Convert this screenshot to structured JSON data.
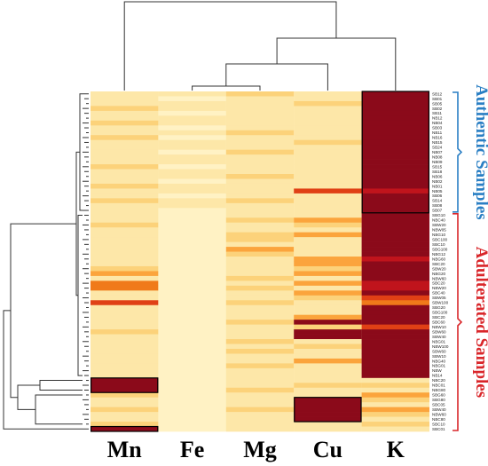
{
  "chart_data": {
    "type": "heatmap",
    "columns": [
      "Mn",
      "Fe",
      "Mg",
      "Cu",
      "K"
    ],
    "column_order_note": "",
    "rows": [
      "SB12",
      "SB01",
      "SB05",
      "SB02",
      "SB11",
      "NB12",
      "NB04",
      "SB03",
      "NB11",
      "NB16",
      "NB15",
      "SB24",
      "NB07",
      "NB08",
      "NB09",
      "SB15",
      "SB18",
      "NB06",
      "NB02",
      "NB01",
      "NB05",
      "SB06",
      "SB14",
      "SB08",
      "SB07",
      "SBG10",
      "NBC40",
      "SBW20",
      "NBW05",
      "NBG10",
      "SBC100",
      "SBC10",
      "SBG100",
      "NBG12",
      "NBG60",
      "SBC20",
      "SBW20",
      "NBG20",
      "NBW60",
      "SBC20",
      "NBW20",
      "SBC40",
      "SBW05",
      "SBW100",
      "SBG20",
      "SBG100",
      "SBC20",
      "SBC60",
      "NBW10",
      "SBW60",
      "SBW40",
      "NBG01",
      "NBW100",
      "SBW60",
      "SBW10",
      "NBG40",
      "NBG01",
      "NBW",
      "NB14",
      "NBC20",
      "NBC01",
      "NBG80",
      "SBG60",
      "SBG80",
      "SBC05",
      "SBW40",
      "NBW60",
      "NBC80",
      "SBC10",
      "SBC01"
    ],
    "groups": [
      {
        "label": "Authentic Samples",
        "color": "#2a7fc4"
      },
      {
        "label": "Adulterated Samples",
        "color": "#d9262a"
      }
    ],
    "group_split_row": 25,
    "color_scale": [
      "#fff2c4",
      "#fde7a8",
      "#fcd27a",
      "#fba43c",
      "#f07a1a",
      "#e04015",
      "#c0141c",
      "#8b0a1a"
    ],
    "value_range": [
      0,
      7
    ],
    "values": [
      [
        1,
        1,
        2,
        1,
        7
      ],
      [
        1,
        0,
        1,
        1,
        7
      ],
      [
        1,
        1,
        1,
        2,
        7
      ],
      [
        2,
        1,
        1,
        1,
        7
      ],
      [
        1,
        0,
        1,
        1,
        7
      ],
      [
        1,
        1,
        1,
        1,
        7
      ],
      [
        2,
        1,
        1,
        1,
        7
      ],
      [
        1,
        0,
        1,
        1,
        7
      ],
      [
        1,
        1,
        2,
        1,
        7
      ],
      [
        2,
        0,
        1,
        1,
        7
      ],
      [
        1,
        1,
        1,
        2,
        7
      ],
      [
        1,
        1,
        1,
        1,
        7
      ],
      [
        1,
        0,
        2,
        1,
        7
      ],
      [
        1,
        1,
        1,
        1,
        7
      ],
      [
        1,
        1,
        1,
        1,
        7
      ],
      [
        2,
        0,
        1,
        1,
        7
      ],
      [
        1,
        1,
        1,
        1,
        7
      ],
      [
        1,
        1,
        2,
        1,
        7
      ],
      [
        1,
        0,
        1,
        1,
        7
      ],
      [
        2,
        1,
        1,
        1,
        7
      ],
      [
        1,
        1,
        1,
        5,
        6
      ],
      [
        1,
        0,
        1,
        1,
        7
      ],
      [
        2,
        1,
        2,
        1,
        7
      ],
      [
        1,
        1,
        1,
        1,
        7
      ],
      [
        1,
        0,
        1,
        1,
        7
      ],
      [
        1,
        0,
        1,
        1,
        7
      ],
      [
        1,
        0,
        2,
        3,
        7
      ],
      [
        2,
        0,
        1,
        2,
        7
      ],
      [
        1,
        0,
        1,
        1,
        7
      ],
      [
        1,
        0,
        2,
        3,
        7
      ],
      [
        1,
        0,
        2,
        1,
        7
      ],
      [
        1,
        0,
        1,
        1,
        7
      ],
      [
        1,
        0,
        3,
        1,
        7
      ],
      [
        1,
        0,
        2,
        1,
        7
      ],
      [
        1,
        0,
        1,
        3,
        6
      ],
      [
        1,
        0,
        1,
        3,
        7
      ],
      [
        2,
        0,
        1,
        2,
        7
      ],
      [
        3,
        0,
        1,
        3,
        7
      ],
      [
        1,
        0,
        2,
        1,
        7
      ],
      [
        4,
        0,
        1,
        3,
        6
      ],
      [
        4,
        0,
        2,
        1,
        6
      ],
      [
        1,
        0,
        1,
        3,
        7
      ],
      [
        1,
        0,
        1,
        2,
        5
      ],
      [
        5,
        0,
        2,
        1,
        4
      ],
      [
        1,
        0,
        1,
        1,
        7
      ],
      [
        1,
        0,
        1,
        1,
        7
      ],
      [
        1,
        0,
        1,
        3,
        7
      ],
      [
        1,
        0,
        2,
        7,
        7
      ],
      [
        1,
        0,
        1,
        2,
        5
      ],
      [
        2,
        0,
        1,
        7,
        7
      ],
      [
        1,
        0,
        1,
        7,
        7
      ],
      [
        1,
        0,
        2,
        1,
        7
      ],
      [
        1,
        0,
        1,
        2,
        7
      ],
      [
        1,
        0,
        2,
        1,
        7
      ],
      [
        1,
        0,
        1,
        1,
        7
      ],
      [
        1,
        0,
        1,
        3,
        7
      ],
      [
        1,
        0,
        2,
        1,
        7
      ],
      [
        1,
        0,
        1,
        1,
        7
      ],
      [
        1,
        0,
        1,
        1,
        7
      ],
      [
        7,
        0,
        1,
        1,
        1
      ],
      [
        7,
        0,
        1,
        2,
        2
      ],
      [
        7,
        0,
        2,
        1,
        1
      ],
      [
        2,
        0,
        1,
        1,
        3
      ],
      [
        1,
        0,
        1,
        7,
        2
      ],
      [
        1,
        0,
        1,
        7,
        1
      ],
      [
        2,
        0,
        2,
        7,
        3
      ],
      [
        1,
        0,
        1,
        7,
        2
      ],
      [
        1,
        0,
        1,
        7,
        1
      ],
      [
        2,
        0,
        1,
        1,
        2
      ],
      [
        7,
        0,
        1,
        1,
        1
      ]
    ]
  }
}
